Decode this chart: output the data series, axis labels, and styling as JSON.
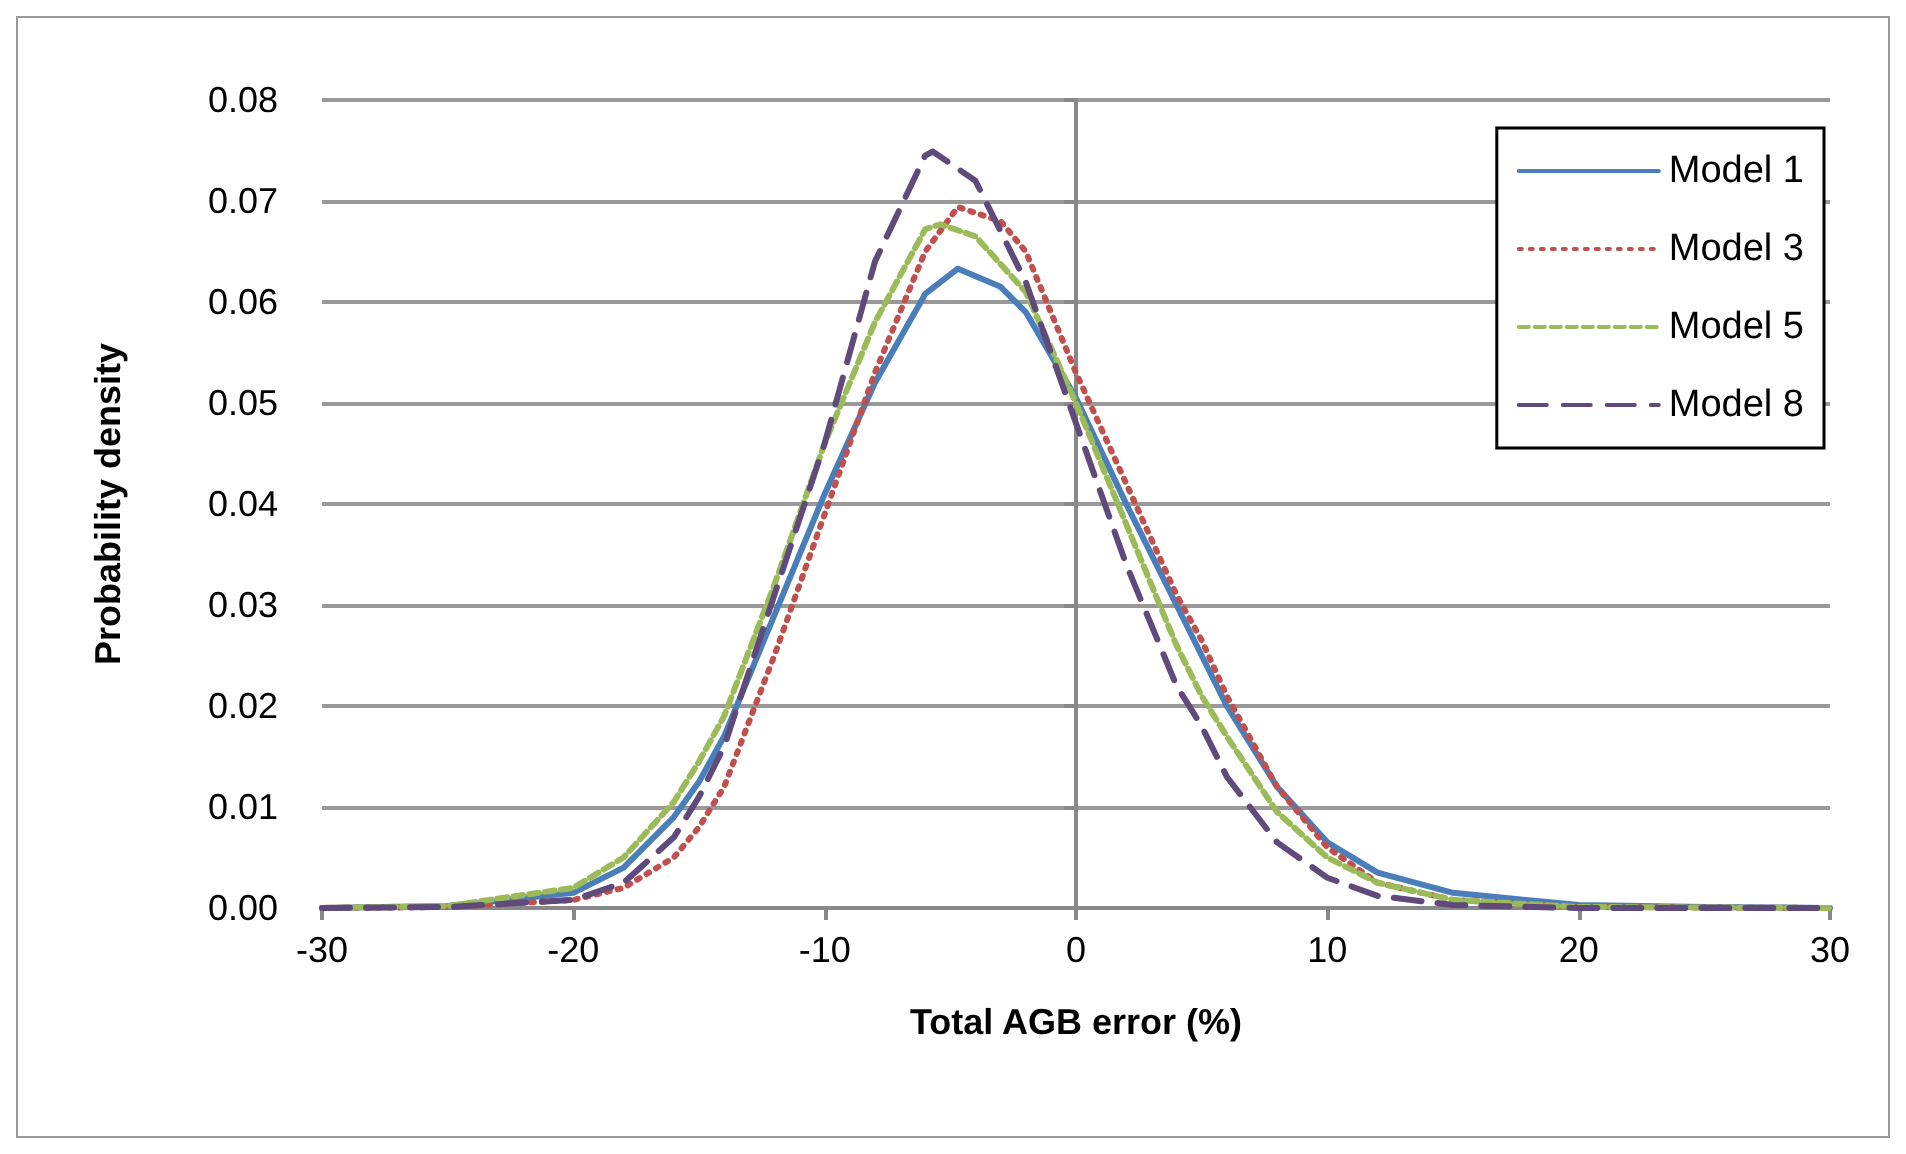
{
  "chart_data": {
    "type": "line",
    "xlabel": "Total AGB error (%)",
    "ylabel": "Probability density",
    "xlim": [
      -30,
      30
    ],
    "xticks": [
      -30,
      -20,
      -10,
      0,
      10,
      20,
      30
    ],
    "ylim": [
      0,
      0.08
    ],
    "yticks": [
      {
        "value": 0,
        "label": "0.00"
      },
      {
        "value": 0.01,
        "label": "0.01"
      },
      {
        "value": 0.02,
        "label": "0.02"
      },
      {
        "value": 0.03,
        "label": "0.03"
      },
      {
        "value": 0.04,
        "label": "0.04"
      },
      {
        "value": 0.05,
        "label": "0.05"
      },
      {
        "value": 0.06,
        "label": "0.06"
      },
      {
        "value": 0.07,
        "label": "0.07"
      },
      {
        "value": 0.08,
        "label": "0.08"
      }
    ],
    "grid": "y",
    "legend": "top right",
    "marker": "none",
    "series": [
      {
        "name": "Model 1",
        "color": "#4a7ebb",
        "line_style": "solid",
        "x": [
          -30,
          -25,
          -20,
          -18,
          -16,
          -15,
          -14,
          -12,
          -10,
          -8,
          -6,
          -4.7,
          -3,
          -2,
          0,
          2,
          4,
          5,
          6,
          8,
          10,
          12,
          15,
          20,
          25,
          30
        ],
        "values": [
          0,
          0.0002,
          0.0015,
          0.004,
          0.009,
          0.0125,
          0.017,
          0.029,
          0.041,
          0.052,
          0.0608,
          0.0633,
          0.0615,
          0.059,
          0.0505,
          0.04,
          0.03,
          0.025,
          0.02,
          0.012,
          0.0065,
          0.0035,
          0.0015,
          0.0003,
          0.0001,
          0
        ]
      },
      {
        "name": "Model 3",
        "color": "#c0504d",
        "line_style": "dotted",
        "x": [
          -30,
          -25,
          -20,
          -18,
          -16,
          -15,
          -14,
          -12,
          -10,
          -8,
          -6,
          -4.7,
          -3,
          -2,
          0,
          2,
          4,
          5,
          6,
          8,
          10,
          12,
          15,
          20,
          30
        ],
        "values": [
          0,
          0.0001,
          0.0008,
          0.002,
          0.005,
          0.008,
          0.012,
          0.025,
          0.039,
          0.053,
          0.065,
          0.0694,
          0.068,
          0.065,
          0.053,
          0.042,
          0.031,
          0.0265,
          0.021,
          0.012,
          0.006,
          0.0025,
          0.0008,
          0.0001,
          0
        ]
      },
      {
        "name": "Model 5",
        "color": "#9bbb59",
        "line_style": "dashed",
        "x": [
          -30,
          -25,
          -20,
          -18,
          -16,
          -15,
          -14,
          -12,
          -10,
          -8,
          -6,
          -5.4,
          -4,
          -2,
          0,
          2,
          4,
          5,
          6,
          8,
          10,
          12,
          15,
          20,
          30
        ],
        "values": [
          0,
          0.0002,
          0.002,
          0.005,
          0.0105,
          0.0145,
          0.019,
          0.032,
          0.046,
          0.058,
          0.0672,
          0.0677,
          0.0665,
          0.061,
          0.05,
          0.038,
          0.026,
          0.021,
          0.017,
          0.0095,
          0.005,
          0.0025,
          0.0008,
          0.0001,
          0
        ]
      },
      {
        "name": "Model 8",
        "color": "#604a7b",
        "line_style": "longdash",
        "x": [
          -30,
          -25,
          -20,
          -18,
          -16,
          -15,
          -14,
          -12,
          -10,
          -8,
          -6,
          -5.7,
          -4,
          -2,
          0,
          2,
          4,
          5,
          6,
          8,
          10,
          12,
          15,
          20,
          30
        ],
        "values": [
          0,
          0.0001,
          0.0008,
          0.0025,
          0.007,
          0.011,
          0.016,
          0.031,
          0.046,
          0.064,
          0.0745,
          0.0749,
          0.072,
          0.062,
          0.048,
          0.034,
          0.022,
          0.018,
          0.013,
          0.0065,
          0.003,
          0.0012,
          0.0003,
          0,
          0
        ]
      }
    ]
  }
}
